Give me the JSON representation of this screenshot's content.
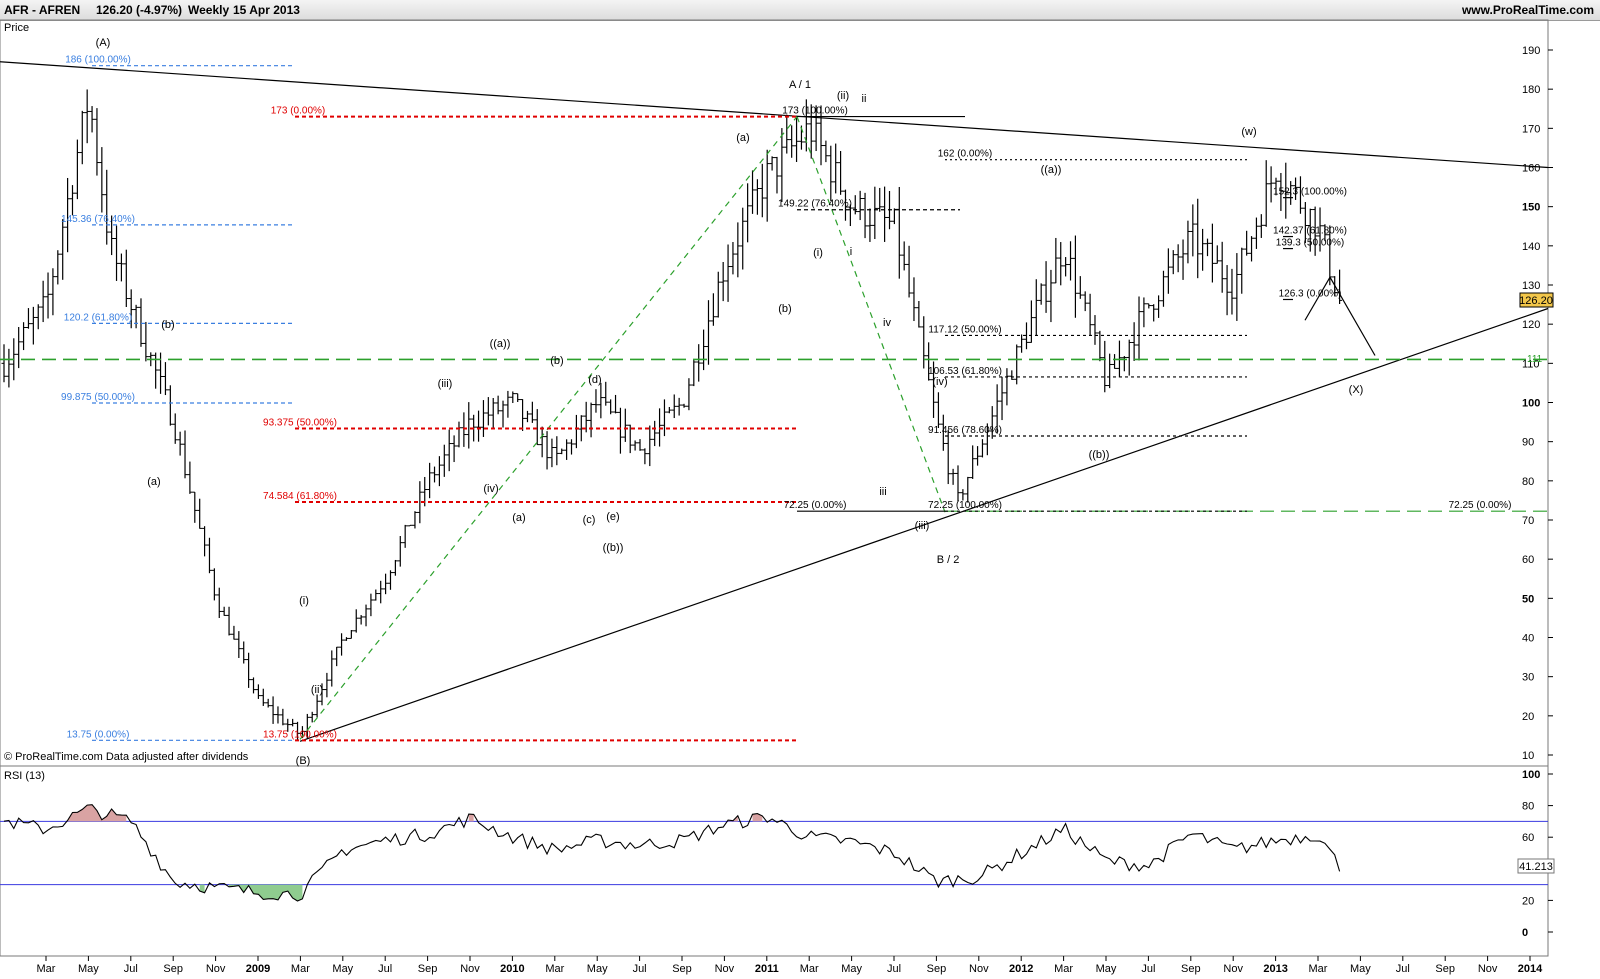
{
  "header": {
    "ticker": "AFR - AFREN",
    "quote": "126.20 (-4.97%)",
    "period": "Weekly",
    "date": "15 Apr 2013",
    "site": "www.ProRealTime.com"
  },
  "price_panel": {
    "label": "Price",
    "last_price": "126.20",
    "copyright": "© ProRealTime.com  Data adjusted after dividends",
    "y_ticks": [
      10,
      20,
      30,
      40,
      50,
      60,
      70,
      80,
      90,
      100,
      110,
      120,
      130,
      140,
      150,
      160,
      170,
      180,
      190
    ],
    "hline_label": "111"
  },
  "rsi_panel": {
    "label": "RSI (13)",
    "last_value": "41.213",
    "y_ticks": [
      0,
      20,
      40,
      60,
      80,
      100
    ],
    "upper_level": 70,
    "lower_level": 30
  },
  "x_axis": {
    "labels": [
      "Mar",
      "May",
      "Jul",
      "Sep",
      "Nov",
      "2009",
      "Mar",
      "May",
      "Jul",
      "Sep",
      "Nov",
      "2010",
      "Mar",
      "May",
      "Jul",
      "Sep",
      "Nov",
      "2011",
      "Mar",
      "May",
      "Jul",
      "Sep",
      "Nov",
      "2012",
      "Mar",
      "May",
      "Jul",
      "Sep",
      "Nov",
      "2013",
      "Mar",
      "May",
      "Jul",
      "Sep",
      "Nov",
      "2014"
    ],
    "bold": [
      "2009",
      "2010",
      "2011",
      "2012",
      "2013",
      "2014"
    ]
  },
  "fib_labels": [
    {
      "text": "186 (100.00%)",
      "color": "#3a7fe0"
    },
    {
      "text": "145.36 (76.40%)",
      "color": "#3a7fe0"
    },
    {
      "text": "120.2 (61.80%)",
      "color": "#3a7fe0"
    },
    {
      "text": "99.875 (50.00%)",
      "color": "#3a7fe0"
    },
    {
      "text": "13.75 (0.00%)",
      "color": "#3a7fe0"
    },
    {
      "text": "173 (0.00%)",
      "color": "#e00000"
    },
    {
      "text": "93.375 (50.00%)",
      "color": "#e00000"
    },
    {
      "text": "74.584 (61.80%)",
      "color": "#e00000"
    },
    {
      "text": "13.75 (100.00%)",
      "color": "#e00000"
    },
    {
      "text": "173 (100.00%)",
      "color": "#000000"
    },
    {
      "text": "149.22 (76.40%)",
      "color": "#000000"
    },
    {
      "text": "72.25 (0.00%)",
      "color": "#000000"
    },
    {
      "text": "162 (0.00%)",
      "color": "#000000"
    },
    {
      "text": "117.12 (50.00%)",
      "color": "#000000"
    },
    {
      "text": "106.53 (61.80%)",
      "color": "#000000"
    },
    {
      "text": "91.456 (78.60%)",
      "color": "#000000"
    },
    {
      "text": "72.25 (100.00%)",
      "color": "#000000"
    },
    {
      "text": "152.3 (100.00%)",
      "color": "#000000"
    },
    {
      "text": "142.37 (61.80%)",
      "color": "#000000"
    },
    {
      "text": "139.3 (50.00%)",
      "color": "#000000"
    },
    {
      "text": "126.3 (0.00%)",
      "color": "#000000"
    },
    {
      "text": "72.25 (0.00%)",
      "color": "#000000"
    }
  ],
  "wave_labels": [
    "(A)",
    "(B)",
    "(a)",
    "(b)",
    "(i)",
    "(ii)",
    "(iii)",
    "(iv)",
    "((a))",
    "(b)",
    "(d)",
    "(a)",
    "(c)",
    "(e)",
    "((b))",
    "A / 1",
    "(ii)",
    "ii",
    "(a)",
    "(b)",
    "(i)",
    "i",
    "iv",
    "iii",
    "(iv)",
    "(iii)",
    "B / 2",
    "((a))",
    "((b))",
    "(w)",
    "(X)"
  ],
  "chart_data": {
    "type": "line",
    "title": "AFR - AFREN Weekly 15 Apr 2013",
    "x": [
      "2008-01",
      "2008-03",
      "2008-05",
      "2008-06",
      "2008-09",
      "2008-11",
      "2009-01",
      "2009-03",
      "2009-05",
      "2009-07",
      "2009-09",
      "2009-11",
      "2010-01",
      "2010-03",
      "2010-05",
      "2010-07",
      "2010-09",
      "2010-11",
      "2011-01",
      "2011-03",
      "2011-05",
      "2011-07",
      "2011-09",
      "2011-10",
      "2012-01",
      "2012-03",
      "2012-05",
      "2012-07",
      "2012-09",
      "2012-11",
      "2013-01",
      "2013-03",
      "2013-04"
    ],
    "series": [
      {
        "values": [
          110,
          125,
          178,
          140,
          95,
          50,
          24,
          15,
          40,
          55,
          80,
          95,
          100,
          85,
          100,
          88,
          100,
          135,
          158,
          170,
          150,
          145,
          95,
          75,
          115,
          140,
          105,
          125,
          142,
          130,
          160,
          145,
          126
        ]
      }
    ],
    "ylim": [
      10,
      190
    ],
    "ylabel": "Price",
    "rsi": {
      "label": "RSI (13)",
      "x": [
        "2008-01",
        "2008-03",
        "2008-05",
        "2008-07",
        "2008-09",
        "2008-11",
        "2009-01",
        "2009-03",
        "2009-05",
        "2009-07",
        "2009-09",
        "2009-11",
        "2010-01",
        "2010-03",
        "2010-05",
        "2010-07",
        "2010-09",
        "2010-11",
        "2011-01",
        "2011-03",
        "2011-05",
        "2011-07",
        "2011-09",
        "2011-11",
        "2012-01",
        "2012-03",
        "2012-05",
        "2012-07",
        "2012-09",
        "2012-11",
        "2013-01",
        "2013-03",
        "2013-04"
      ],
      "values": [
        70,
        65,
        78,
        70,
        32,
        28,
        25,
        24,
        52,
        58,
        62,
        72,
        60,
        52,
        58,
        55,
        58,
        68,
        73,
        60,
        57,
        50,
        32,
        35,
        50,
        65,
        45,
        42,
        62,
        52,
        58,
        62,
        41
      ],
      "ylim": [
        0,
        100
      ],
      "levels": [
        70,
        30
      ]
    }
  }
}
